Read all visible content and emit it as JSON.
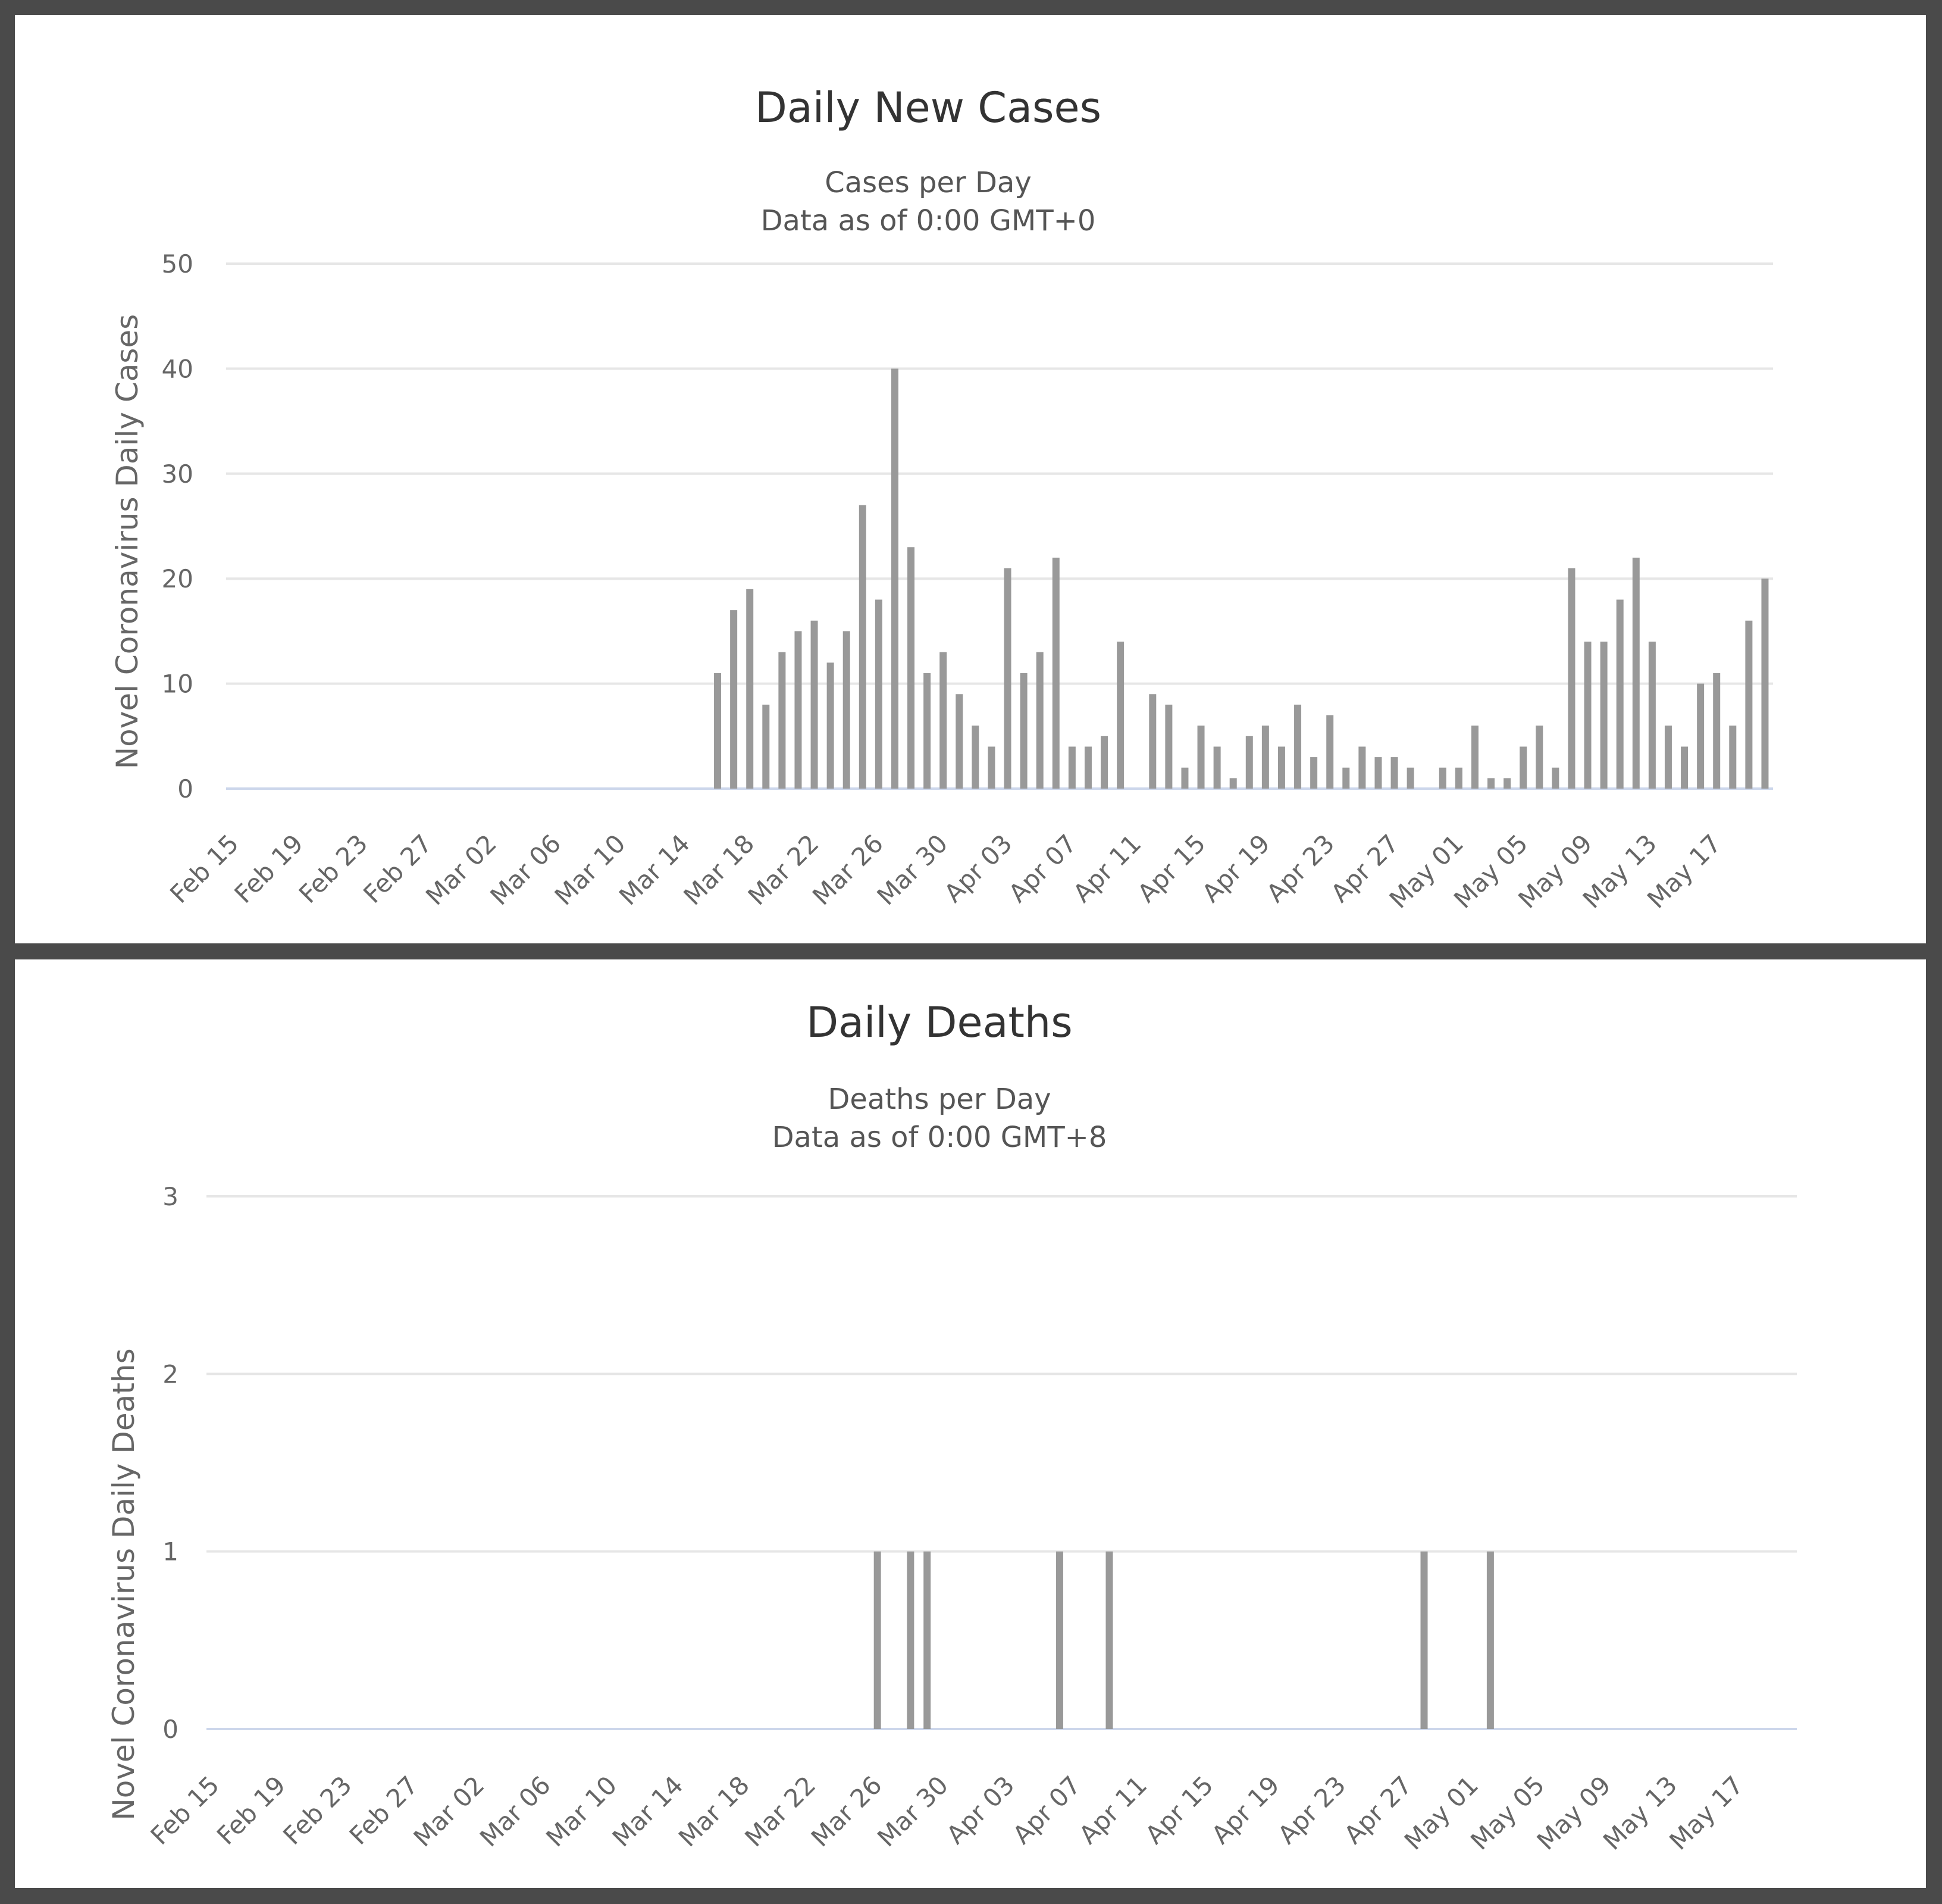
{
  "chart_data": [
    {
      "type": "bar",
      "title": "Daily New Cases",
      "subtitle_lines": [
        "Cases per Day",
        "Data as of 0:00 GMT+0"
      ],
      "ylabel": "Novel Coronavirus Daily Cases",
      "xlabel": "",
      "ylim": [
        0,
        50
      ],
      "yticks": [
        "0",
        "10",
        "20",
        "30",
        "40",
        "50"
      ],
      "grid": true,
      "bar_color": "#999999",
      "start_date": "2020-02-15",
      "x_tick_labels": [
        "Feb 15",
        "Feb 19",
        "Feb 23",
        "Feb 27",
        "Mar 02",
        "Mar 06",
        "Mar 10",
        "Mar 14",
        "Mar 18",
        "Mar 22",
        "Mar 26",
        "Mar 30",
        "Apr 03",
        "Apr 07",
        "Apr 11",
        "Apr 15",
        "Apr 19",
        "Apr 23",
        "Apr 27",
        "May 01",
        "May 05",
        "May 09",
        "May 13",
        "May 17"
      ],
      "values": [
        0,
        0,
        0,
        0,
        0,
        0,
        0,
        0,
        0,
        0,
        0,
        0,
        0,
        0,
        0,
        0,
        0,
        0,
        0,
        0,
        0,
        0,
        0,
        0,
        0,
        0,
        0,
        0,
        0,
        0,
        11,
        17,
        19,
        8,
        13,
        15,
        16,
        12,
        15,
        27,
        18,
        40,
        23,
        11,
        13,
        9,
        6,
        4,
        21,
        11,
        13,
        22,
        4,
        4,
        5,
        14,
        0,
        9,
        8,
        2,
        6,
        4,
        1,
        5,
        6,
        4,
        8,
        3,
        7,
        2,
        4,
        3,
        3,
        2,
        0,
        2,
        2,
        6,
        1,
        1,
        4,
        6,
        2,
        21,
        14,
        14,
        18,
        22,
        14,
        6,
        4,
        10,
        11,
        6,
        16,
        20
      ]
    },
    {
      "type": "bar",
      "title": "Daily Deaths",
      "subtitle_lines": [
        "Deaths per Day",
        "Data as of 0:00 GMT+8"
      ],
      "ylabel": "Novel Coronavirus Daily Deaths",
      "xlabel": "",
      "ylim": [
        0,
        3
      ],
      "yticks": [
        "0",
        "1",
        "2",
        "3"
      ],
      "grid": true,
      "bar_color": "#999999",
      "start_date": "2020-02-15",
      "x_tick_labels": [
        "Feb 15",
        "Feb 19",
        "Feb 23",
        "Feb 27",
        "Mar 02",
        "Mar 06",
        "Mar 10",
        "Mar 14",
        "Mar 18",
        "Mar 22",
        "Mar 26",
        "Mar 30",
        "Apr 03",
        "Apr 07",
        "Apr 11",
        "Apr 15",
        "Apr 19",
        "Apr 23",
        "Apr 27",
        "May 01",
        "May 05",
        "May 09",
        "May 13",
        "May 17"
      ],
      "values": [
        0,
        0,
        0,
        0,
        0,
        0,
        0,
        0,
        0,
        0,
        0,
        0,
        0,
        0,
        0,
        0,
        0,
        0,
        0,
        0,
        0,
        0,
        0,
        0,
        0,
        0,
        0,
        0,
        0,
        0,
        0,
        0,
        0,
        0,
        0,
        0,
        0,
        0,
        0,
        0,
        1,
        0,
        1,
        1,
        0,
        0,
        0,
        0,
        0,
        0,
        0,
        1,
        0,
        0,
        1,
        0,
        0,
        0,
        0,
        0,
        0,
        0,
        0,
        0,
        0,
        0,
        0,
        0,
        0,
        0,
        0,
        0,
        0,
        1,
        0,
        0,
        0,
        1,
        0,
        0,
        0,
        0,
        0,
        0,
        0,
        0,
        0,
        0,
        0,
        0,
        0,
        0,
        0,
        0,
        0,
        0
      ]
    }
  ]
}
